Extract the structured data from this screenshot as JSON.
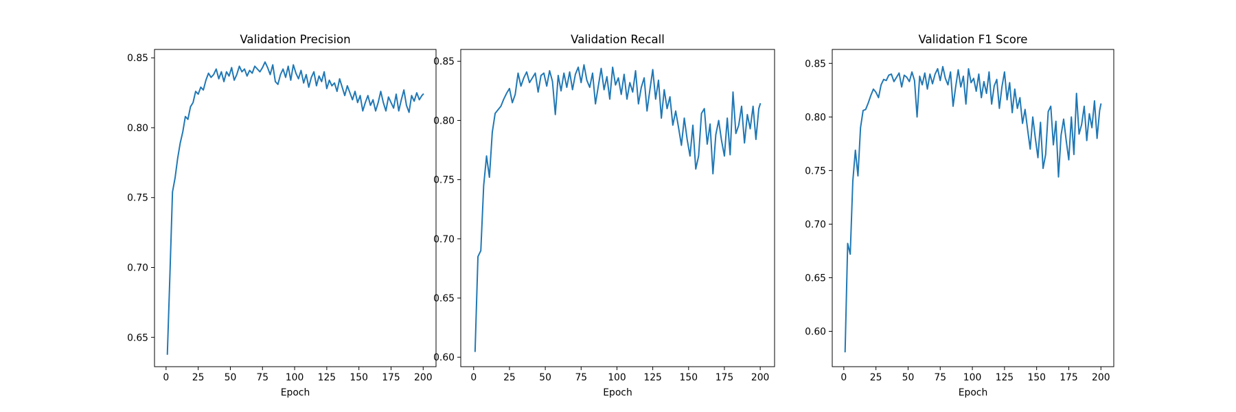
{
  "chart_data": [
    {
      "type": "line",
      "title": "Validation Precision",
      "xlabel": "Epoch",
      "ylabel": "",
      "xlim": [
        -9,
        210
      ],
      "ylim": [
        0.629,
        0.856
      ],
      "grid": false,
      "x_ticks": [
        0,
        25,
        50,
        75,
        100,
        125,
        150,
        175,
        200
      ],
      "y_ticks": [
        0.65,
        0.7,
        0.75,
        0.8,
        0.85
      ],
      "y_tick_labels": [
        "0.65",
        "0.70",
        "0.75",
        "0.80",
        "0.85"
      ],
      "x": [
        1,
        3,
        5,
        7,
        9,
        11,
        13,
        15,
        17,
        19,
        21,
        23,
        25,
        27,
        29,
        31,
        33,
        35,
        37,
        39,
        41,
        43,
        45,
        47,
        49,
        51,
        53,
        55,
        57,
        59,
        61,
        63,
        65,
        67,
        69,
        71,
        73,
        75,
        77,
        79,
        81,
        83,
        85,
        87,
        89,
        91,
        93,
        95,
        97,
        99,
        101,
        103,
        105,
        107,
        109,
        111,
        113,
        115,
        117,
        119,
        121,
        123,
        125,
        127,
        129,
        131,
        133,
        135,
        137,
        139,
        141,
        143,
        145,
        147,
        149,
        151,
        153,
        155,
        157,
        159,
        161,
        163,
        165,
        167,
        169,
        171,
        173,
        175,
        177,
        179,
        181,
        183,
        185,
        187,
        189,
        191,
        193,
        195,
        197,
        199,
        200
      ],
      "series": [
        {
          "values": [
            0.638,
            0.695,
            0.754,
            0.764,
            0.778,
            0.789,
            0.797,
            0.808,
            0.806,
            0.815,
            0.818,
            0.826,
            0.824,
            0.829,
            0.827,
            0.834,
            0.839,
            0.836,
            0.838,
            0.842,
            0.835,
            0.84,
            0.833,
            0.84,
            0.837,
            0.843,
            0.834,
            0.838,
            0.844,
            0.84,
            0.842,
            0.837,
            0.841,
            0.839,
            0.844,
            0.842,
            0.84,
            0.843,
            0.847,
            0.843,
            0.838,
            0.845,
            0.833,
            0.831,
            0.838,
            0.842,
            0.836,
            0.844,
            0.834,
            0.845,
            0.839,
            0.835,
            0.841,
            0.832,
            0.838,
            0.829,
            0.836,
            0.84,
            0.83,
            0.837,
            0.833,
            0.84,
            0.828,
            0.834,
            0.83,
            0.832,
            0.826,
            0.835,
            0.829,
            0.823,
            0.83,
            0.825,
            0.82,
            0.826,
            0.818,
            0.823,
            0.812,
            0.818,
            0.823,
            0.816,
            0.82,
            0.812,
            0.818,
            0.826,
            0.818,
            0.812,
            0.822,
            0.818,
            0.814,
            0.824,
            0.812,
            0.82,
            0.827,
            0.816,
            0.811,
            0.823,
            0.819,
            0.825,
            0.82,
            0.823,
            0.824
          ]
        }
      ]
    },
    {
      "type": "line",
      "title": "Validation Recall",
      "xlabel": "Epoch",
      "ylabel": "",
      "xlim": [
        -9,
        210
      ],
      "ylim": [
        0.592,
        0.86
      ],
      "grid": false,
      "x_ticks": [
        0,
        25,
        50,
        75,
        100,
        125,
        150,
        175,
        200
      ],
      "y_ticks": [
        0.6,
        0.65,
        0.7,
        0.75,
        0.8,
        0.85
      ],
      "y_tick_labels": [
        "0.60",
        "0.65",
        "0.70",
        "0.75",
        "0.80",
        "0.85"
      ],
      "x": [
        1,
        3,
        5,
        7,
        9,
        11,
        13,
        15,
        17,
        19,
        21,
        23,
        25,
        27,
        29,
        31,
        33,
        35,
        37,
        39,
        41,
        43,
        45,
        47,
        49,
        51,
        53,
        55,
        57,
        59,
        61,
        63,
        65,
        67,
        69,
        71,
        73,
        75,
        77,
        79,
        81,
        83,
        85,
        87,
        89,
        91,
        93,
        95,
        97,
        99,
        101,
        103,
        105,
        107,
        109,
        111,
        113,
        115,
        117,
        119,
        121,
        123,
        125,
        127,
        129,
        131,
        133,
        135,
        137,
        139,
        141,
        143,
        145,
        147,
        149,
        151,
        153,
        155,
        157,
        159,
        161,
        163,
        165,
        167,
        169,
        171,
        173,
        175,
        177,
        179,
        181,
        183,
        185,
        187,
        189,
        191,
        193,
        195,
        197,
        199,
        200
      ],
      "series": [
        {
          "values": [
            0.605,
            0.685,
            0.69,
            0.745,
            0.77,
            0.752,
            0.79,
            0.806,
            0.809,
            0.812,
            0.818,
            0.823,
            0.827,
            0.815,
            0.822,
            0.84,
            0.829,
            0.836,
            0.841,
            0.832,
            0.836,
            0.84,
            0.824,
            0.838,
            0.84,
            0.829,
            0.842,
            0.833,
            0.805,
            0.838,
            0.825,
            0.84,
            0.828,
            0.841,
            0.826,
            0.839,
            0.845,
            0.832,
            0.847,
            0.834,
            0.828,
            0.84,
            0.814,
            0.829,
            0.844,
            0.826,
            0.837,
            0.818,
            0.845,
            0.83,
            0.836,
            0.822,
            0.839,
            0.818,
            0.832,
            0.824,
            0.842,
            0.814,
            0.828,
            0.836,
            0.808,
            0.826,
            0.843,
            0.818,
            0.834,
            0.802,
            0.826,
            0.81,
            0.82,
            0.796,
            0.808,
            0.794,
            0.779,
            0.802,
            0.784,
            0.77,
            0.796,
            0.759,
            0.77,
            0.806,
            0.81,
            0.78,
            0.797,
            0.755,
            0.788,
            0.8,
            0.783,
            0.77,
            0.802,
            0.771,
            0.824,
            0.789,
            0.796,
            0.812,
            0.781,
            0.805,
            0.793,
            0.812,
            0.784,
            0.81,
            0.814
          ]
        }
      ]
    },
    {
      "type": "line",
      "title": "Validation F1 Score",
      "xlabel": "Epoch",
      "ylabel": "",
      "xlim": [
        -9,
        210
      ],
      "ylim": [
        0.567,
        0.863
      ],
      "grid": false,
      "x_ticks": [
        0,
        25,
        50,
        75,
        100,
        125,
        150,
        175,
        200
      ],
      "y_ticks": [
        0.6,
        0.65,
        0.7,
        0.75,
        0.8,
        0.85
      ],
      "y_tick_labels": [
        "0.60",
        "0.65",
        "0.70",
        "0.75",
        "0.80",
        "0.85"
      ],
      "x": [
        1,
        3,
        5,
        7,
        9,
        11,
        13,
        15,
        17,
        19,
        21,
        23,
        25,
        27,
        29,
        31,
        33,
        35,
        37,
        39,
        41,
        43,
        45,
        47,
        49,
        51,
        53,
        55,
        57,
        59,
        61,
        63,
        65,
        67,
        69,
        71,
        73,
        75,
        77,
        79,
        81,
        83,
        85,
        87,
        89,
        91,
        93,
        95,
        97,
        99,
        101,
        103,
        105,
        107,
        109,
        111,
        113,
        115,
        117,
        119,
        121,
        123,
        125,
        127,
        129,
        131,
        133,
        135,
        137,
        139,
        141,
        143,
        145,
        147,
        149,
        151,
        153,
        155,
        157,
        159,
        161,
        163,
        165,
        167,
        169,
        171,
        173,
        175,
        177,
        179,
        181,
        183,
        185,
        187,
        189,
        191,
        193,
        195,
        197,
        199,
        200
      ],
      "series": [
        {
          "values": [
            0.581,
            0.682,
            0.672,
            0.74,
            0.769,
            0.745,
            0.79,
            0.806,
            0.807,
            0.813,
            0.82,
            0.826,
            0.823,
            0.818,
            0.83,
            0.835,
            0.834,
            0.839,
            0.84,
            0.833,
            0.837,
            0.841,
            0.828,
            0.839,
            0.837,
            0.833,
            0.842,
            0.834,
            0.8,
            0.838,
            0.83,
            0.841,
            0.826,
            0.84,
            0.831,
            0.84,
            0.845,
            0.834,
            0.847,
            0.836,
            0.83,
            0.842,
            0.81,
            0.828,
            0.844,
            0.828,
            0.838,
            0.812,
            0.845,
            0.832,
            0.836,
            0.824,
            0.84,
            0.818,
            0.833,
            0.822,
            0.842,
            0.812,
            0.829,
            0.835,
            0.808,
            0.828,
            0.842,
            0.816,
            0.832,
            0.804,
            0.826,
            0.808,
            0.818,
            0.794,
            0.807,
            0.788,
            0.77,
            0.8,
            0.78,
            0.762,
            0.795,
            0.752,
            0.765,
            0.805,
            0.81,
            0.774,
            0.796,
            0.744,
            0.783,
            0.798,
            0.778,
            0.76,
            0.8,
            0.765,
            0.822,
            0.784,
            0.793,
            0.81,
            0.778,
            0.803,
            0.79,
            0.815,
            0.78,
            0.806,
            0.812
          ]
        }
      ]
    }
  ]
}
